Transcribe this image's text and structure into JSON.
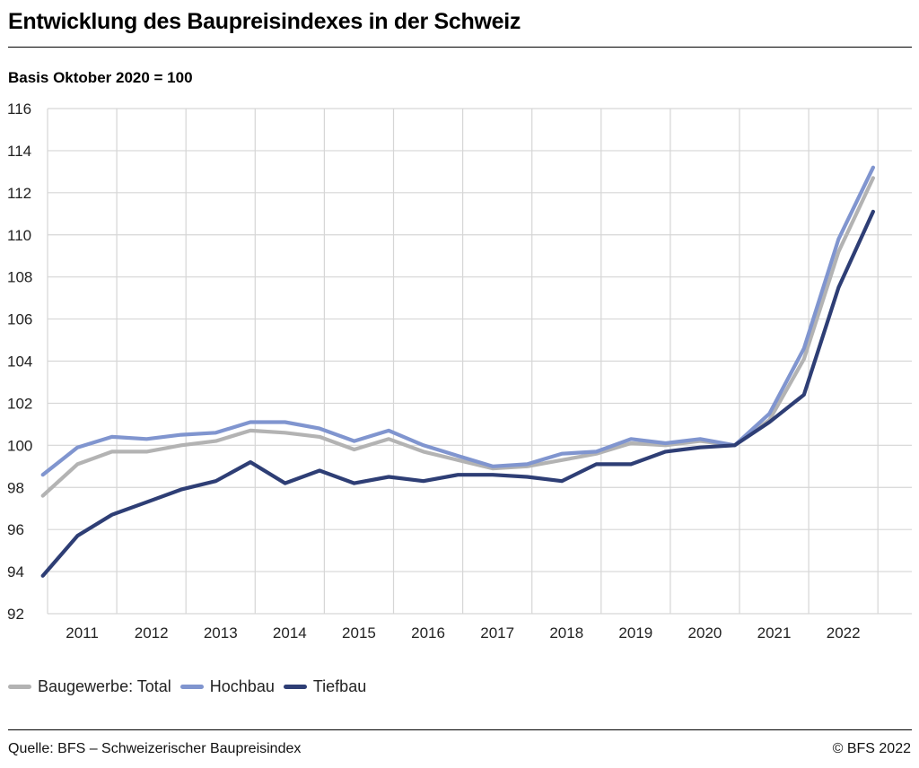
{
  "header": {
    "title": "Entwicklung des Baupreisindexes in der Schweiz",
    "subtitle": "Basis Oktober 2020 = 100"
  },
  "footer": {
    "source": "Quelle: BFS – Schweizerischer Baupreisindex",
    "copyright": "© BFS 2022"
  },
  "chart_data": {
    "type": "line",
    "title": "Entwicklung des Baupreisindexes in der Schweiz",
    "subtitle": "Basis Oktober 2020 = 100",
    "ylim": [
      92,
      116
    ],
    "y_ticks": [
      92,
      94,
      96,
      98,
      100,
      102,
      104,
      106,
      108,
      110,
      112,
      114,
      116
    ],
    "x_tick_labels": [
      "2011",
      "2012",
      "2013",
      "2014",
      "2015",
      "2016",
      "2017",
      "2018",
      "2019",
      "2020",
      "2021",
      "2022"
    ],
    "grid": true,
    "legend_position": "bottom-left",
    "x": [
      "2010-10",
      "2011-04",
      "2011-10",
      "2012-04",
      "2012-10",
      "2013-04",
      "2013-10",
      "2014-04",
      "2014-10",
      "2015-04",
      "2015-10",
      "2016-04",
      "2016-10",
      "2017-04",
      "2017-10",
      "2018-04",
      "2018-10",
      "2019-04",
      "2019-10",
      "2020-04",
      "2020-10",
      "2021-04",
      "2021-10",
      "2022-04",
      "2022-10"
    ],
    "series": [
      {
        "name": "Baugewerbe: Total",
        "color": "#b3b3b3",
        "values": [
          97.6,
          99.1,
          99.7,
          99.7,
          100.0,
          100.2,
          100.7,
          100.6,
          100.4,
          99.8,
          100.3,
          99.7,
          99.3,
          98.9,
          99.0,
          99.3,
          99.6,
          100.1,
          100.0,
          100.2,
          100.0,
          101.2,
          104.1,
          109.2,
          112.7
        ]
      },
      {
        "name": "Hochbau",
        "color": "#8095cf",
        "values": [
          98.6,
          99.9,
          100.4,
          100.3,
          100.5,
          100.6,
          101.1,
          101.1,
          100.8,
          100.2,
          100.7,
          100.0,
          99.5,
          99.0,
          99.1,
          99.6,
          99.7,
          100.3,
          100.1,
          100.3,
          100.0,
          101.5,
          104.6,
          109.8,
          113.2
        ]
      },
      {
        "name": "Tiefbau",
        "color": "#2e3e75",
        "values": [
          93.8,
          95.7,
          96.7,
          97.3,
          97.9,
          98.3,
          99.2,
          98.2,
          98.8,
          98.2,
          98.5,
          98.3,
          98.6,
          98.6,
          98.5,
          98.3,
          99.1,
          99.1,
          99.7,
          99.9,
          100.0,
          101.1,
          102.4,
          107.5,
          111.1
        ]
      }
    ]
  }
}
